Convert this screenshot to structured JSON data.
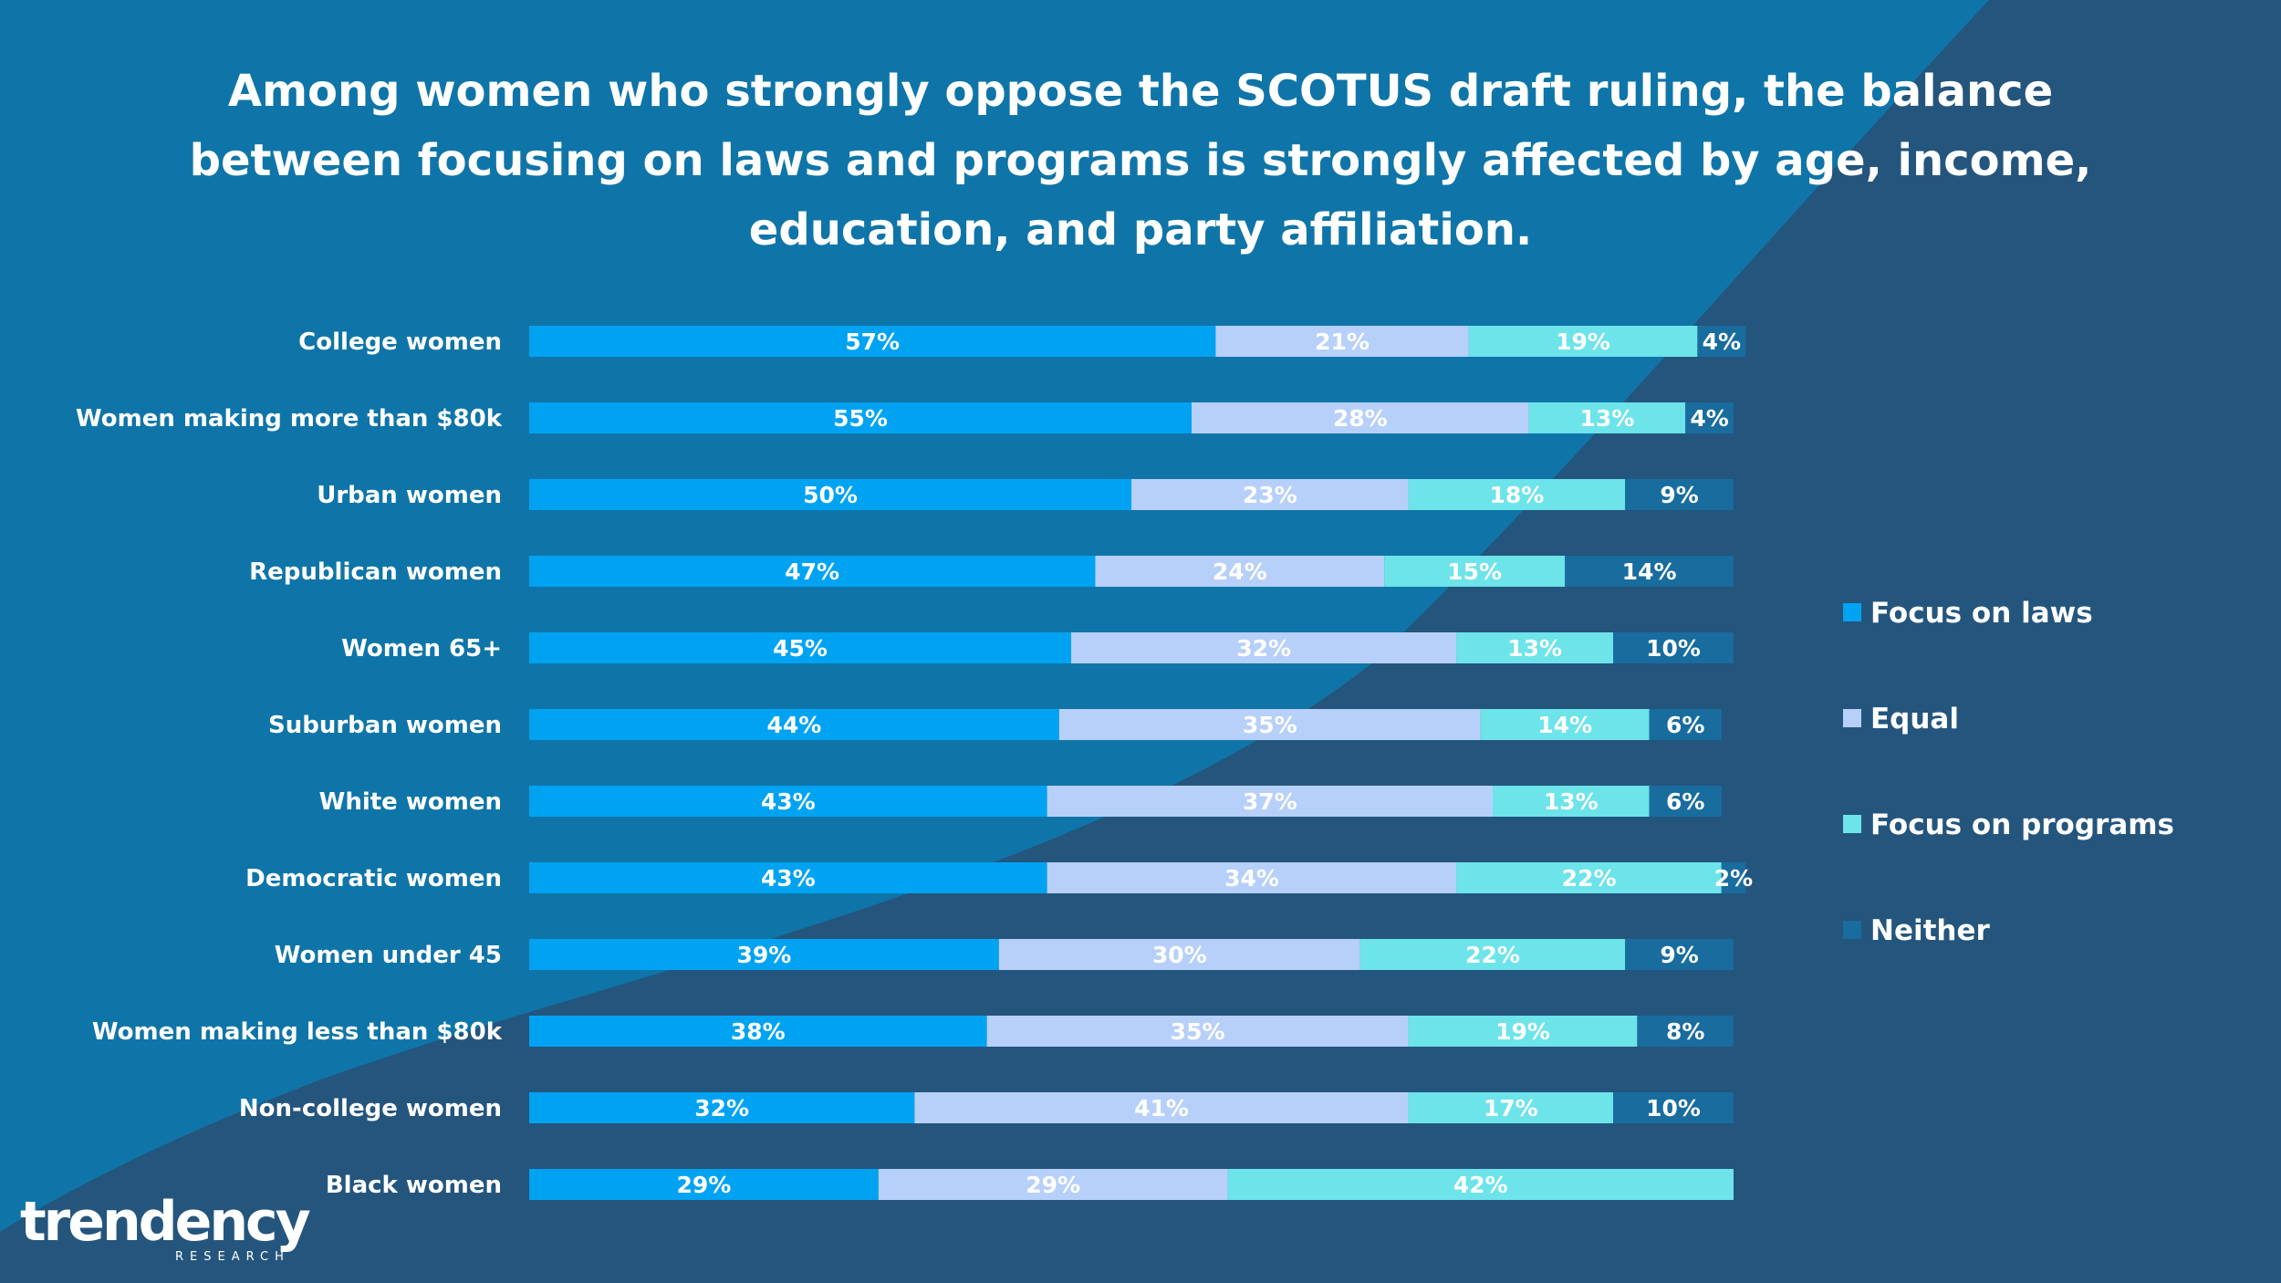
{
  "title": "Among women who strongly oppose the SCOTUS draft ruling, the balance between focusing on laws and programs is strongly affected by age, income, education, and party affiliation.",
  "colors": {
    "background": "#1f5f88",
    "background_light": "#0f75a8",
    "background_dark": "#24557d",
    "focus_on_laws": "#00a3f2",
    "equal": "#b7d0f9",
    "focus_on_programs": "#6de3ea",
    "neither": "#186c9e"
  },
  "logo": {
    "word": "trendency",
    "sub": "RESEARCH"
  },
  "chart_data": {
    "type": "bar",
    "orientation": "horizontal",
    "stacked": true,
    "unit": "%",
    "categories": [
      "College women",
      "Women making more than $80k",
      "Urban women",
      "Republican women",
      "Women 65+",
      "Suburban women",
      "White women",
      "Democratic women",
      "Women under 45",
      "Women making less than $80k",
      "Non-college women",
      "Black women"
    ],
    "series": [
      {
        "name": "Focus on laws",
        "color": "#00a3f2",
        "values": [
          57,
          55,
          50,
          47,
          45,
          44,
          43,
          43,
          39,
          38,
          32,
          29
        ]
      },
      {
        "name": "Equal",
        "color": "#b7d0f9",
        "values": [
          21,
          28,
          23,
          24,
          32,
          35,
          37,
          34,
          30,
          35,
          41,
          29
        ]
      },
      {
        "name": "Focus on programs",
        "color": "#6de3ea",
        "values": [
          19,
          13,
          18,
          15,
          13,
          14,
          13,
          22,
          22,
          19,
          17,
          42
        ]
      },
      {
        "name": "Neither",
        "color": "#186c9e",
        "values": [
          4,
          4,
          9,
          14,
          10,
          6,
          6,
          2,
          9,
          8,
          10,
          0
        ]
      }
    ],
    "data_labels": true,
    "legend_position": "right",
    "grid": false
  }
}
